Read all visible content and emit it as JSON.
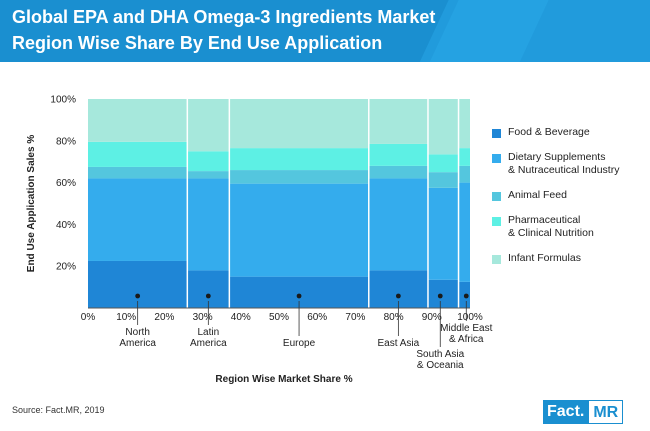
{
  "header": {
    "title_line1": "Global EPA and DHA Omega-3 Ingredients Market",
    "title_line2": "Region Wise Share By End Use Application"
  },
  "chart_data": {
    "type": "mekko",
    "title": "Global EPA and DHA Omega-3 Ingredients Market Region Wise Share By End Use Application",
    "xlabel": "Region Wise Market Share %",
    "ylabel": "End Use Application Sales %",
    "x_ticks": [
      "0%",
      "10%",
      "20%",
      "30%",
      "40%",
      "50%",
      "60%",
      "70%",
      "80%",
      "90%",
      "100%"
    ],
    "y_ticks": [
      "20%",
      "40%",
      "60%",
      "80%",
      "100%"
    ],
    "xlim": [
      0,
      100
    ],
    "ylim": [
      0,
      100
    ],
    "series_names": [
      "Food & Beverage",
      "Dietary Supplements & Nutraceutical Industry",
      "Animal Feed",
      "Pharmaceutical & Clinical Nutrition",
      "Infant Formulas"
    ],
    "series_colors": [
      "#1f86d6",
      "#34aced",
      "#54c6de",
      "#5df0e4",
      "#a6e8dc"
    ],
    "regions": [
      {
        "name": "North America",
        "start": 0,
        "end": 26,
        "values": [
          22.5,
          39.5,
          5.5,
          12,
          20.5
        ]
      },
      {
        "name": "Latin America",
        "start": 26,
        "end": 37,
        "values": [
          18,
          44,
          3.5,
          9.5,
          25
        ]
      },
      {
        "name": "Europe",
        "start": 37,
        "end": 73.5,
        "values": [
          15,
          44.5,
          6.5,
          10.5,
          23.5
        ]
      },
      {
        "name": "East Asia",
        "start": 73.5,
        "end": 89,
        "values": [
          18,
          44,
          6,
          10.5,
          21.5
        ]
      },
      {
        "name": "South Asia & Oceania",
        "start": 89,
        "end": 97,
        "values": [
          13.5,
          44,
          7.5,
          8.5,
          26.5
        ]
      },
      {
        "name": "Middle East & Africa",
        "start": 97,
        "end": 100,
        "values": [
          12.5,
          47.5,
          8,
          8.5,
          23.5
        ]
      }
    ]
  },
  "region_labels": {
    "north_america": "North\nAmerica",
    "latin_america": "Latin\nAmerica",
    "europe": "Europe",
    "east_asia": "East Asia",
    "south_asia": "South Asia\n& Oceania",
    "middle_east": "Middle East\n& Africa"
  },
  "legend": [
    {
      "label": "Food & Beverage",
      "color": "#1f86d6"
    },
    {
      "label": "Dietary Supplements\n& Nutraceutical Industry",
      "color": "#34aced"
    },
    {
      "label": "Animal Feed",
      "color": "#54c6de"
    },
    {
      "label": "Pharmaceutical\n& Clinical Nutrition",
      "color": "#5df0e4"
    },
    {
      "label": "Infant Formulas",
      "color": "#a6e8dc"
    }
  ],
  "footer": {
    "source": "Source: Fact.MR, 2019",
    "logo_part1": "Fact.",
    "logo_part2": "MR"
  }
}
